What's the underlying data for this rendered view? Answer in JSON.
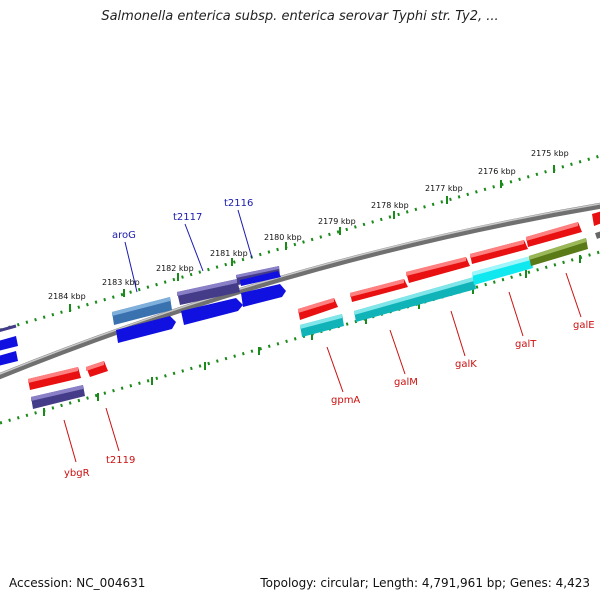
{
  "title": "Salmonella enterica subsp. enterica serovar Typhi str. Ty2, ...",
  "footer": {
    "accession": "Accession: NC_004631",
    "summary": "Topology: circular; Length: 4,791,961 bp; Genes: 4,423"
  },
  "scale_labels": [
    "2175 kbp",
    "2176 kbp",
    "2177 kbp",
    "2178 kbp",
    "2179 kbp",
    "2180 kbp",
    "2181 kbp",
    "2182 kbp",
    "2183 kbp",
    "2184 kbp"
  ],
  "genes_top": [
    "aroG",
    "t2117",
    "t2116"
  ],
  "genes_bottom": [
    "ybgR",
    "t2119",
    "gpmA",
    "galM",
    "galK",
    "galT",
    "galE"
  ],
  "colors": {
    "red": "#e81010",
    "blue": "#1010e0",
    "slate": "#443c88",
    "steel": "#3a72b0",
    "teal": "#10b4b8",
    "cyan": "#10e8f0",
    "olive": "#5a7a18",
    "ticks": "#1a8a1a",
    "backbone": "#7a7a7a"
  }
}
